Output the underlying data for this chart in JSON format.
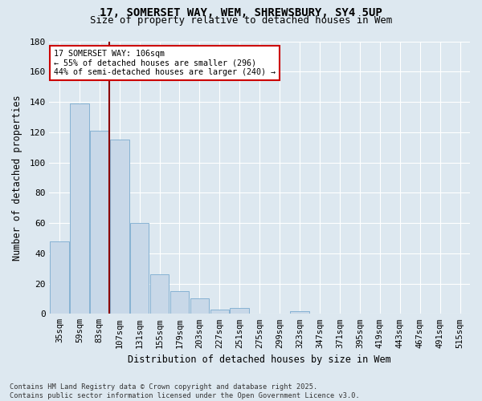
{
  "title_line1": "17, SOMERSET WAY, WEM, SHREWSBURY, SY4 5UP",
  "title_line2": "Size of property relative to detached houses in Wem",
  "xlabel": "Distribution of detached houses by size in Wem",
  "ylabel": "Number of detached properties",
  "categories": [
    "35sqm",
    "59sqm",
    "83sqm",
    "107sqm",
    "131sqm",
    "155sqm",
    "179sqm",
    "203sqm",
    "227sqm",
    "251sqm",
    "275sqm",
    "299sqm",
    "323sqm",
    "347sqm",
    "371sqm",
    "395sqm",
    "419sqm",
    "443sqm",
    "467sqm",
    "491sqm",
    "515sqm"
  ],
  "values": [
    48,
    139,
    121,
    115,
    60,
    26,
    15,
    10,
    3,
    4,
    0,
    0,
    2,
    0,
    0,
    0,
    0,
    0,
    0,
    0,
    0
  ],
  "bar_color": "#c8d8e8",
  "bar_edge_color": "#7aabcf",
  "bg_color": "#dde8f0",
  "grid_color": "#ffffff",
  "vline_index": 2.5,
  "vline_color": "#8b0000",
  "annotation_text": "17 SOMERSET WAY: 106sqm\n← 55% of detached houses are smaller (296)\n44% of semi-detached houses are larger (240) →",
  "annotation_box_color": "#ffffff",
  "annotation_box_edge": "#cc0000",
  "ylim": [
    0,
    180
  ],
  "yticks": [
    0,
    20,
    40,
    60,
    80,
    100,
    120,
    140,
    160,
    180
  ],
  "footer_line1": "Contains HM Land Registry data © Crown copyright and database right 2025.",
  "footer_line2": "Contains public sector information licensed under the Open Government Licence v3.0."
}
